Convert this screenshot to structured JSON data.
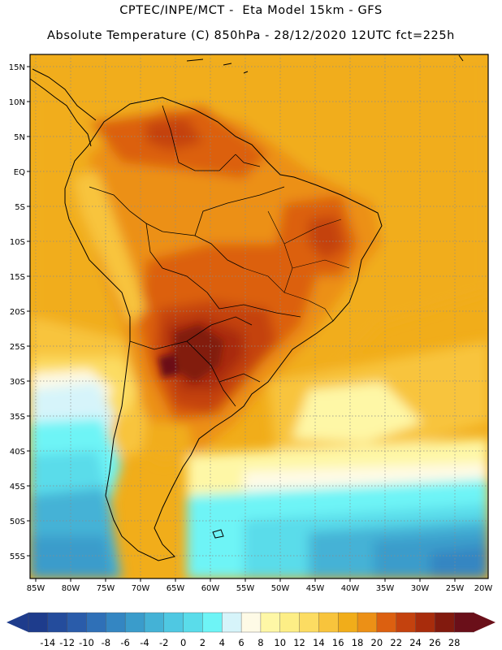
{
  "header": {
    "line1": "CPTEC/INPE/MCT -  Eta Model 15km - GFS",
    "line2": "Absolute Temperature (C) 850hPa - 28/12/2020 12UTC fct=225h"
  },
  "axes": {
    "lat_labels": [
      "15N",
      "10N",
      "5N",
      "EQ",
      "5S",
      "10S",
      "15S",
      "20S",
      "25S",
      "30S",
      "35S",
      "40S",
      "45S",
      "50S",
      "55S"
    ],
    "lat_values": [
      15,
      10,
      5,
      0,
      -5,
      -10,
      -15,
      -20,
      -25,
      -30,
      -35,
      -40,
      -45,
      -50,
      -55
    ],
    "lon_labels": [
      "85W",
      "80W",
      "75W",
      "70W",
      "65W",
      "60W",
      "55W",
      "50W",
      "45W",
      "40W",
      "35W",
      "30W",
      "25W",
      "20W"
    ],
    "lon_values": [
      -85,
      -80,
      -75,
      -70,
      -65,
      -60,
      -55,
      -50,
      -45,
      -40,
      -35,
      -30,
      -25,
      -20
    ],
    "lon_range": [
      -86,
      -20
    ],
    "lat_range": [
      -58,
      17
    ]
  },
  "colorbar": {
    "tick_labels": [
      "-14",
      "-12",
      "-10",
      "-8",
      "-6",
      "-4",
      "-2",
      "0",
      "2",
      "4",
      "6",
      "8",
      "10",
      "12",
      "14",
      "16",
      "18",
      "20",
      "22",
      "24",
      "26",
      "28"
    ],
    "colors": [
      "#1e3c8c",
      "#244c9c",
      "#2a5caa",
      "#2f70b7",
      "#3486c2",
      "#3a9ccb",
      "#44b2d6",
      "#4fc8e2",
      "#5adcea",
      "#6ef4f6",
      "#d6f4fa",
      "#fefae6",
      "#fef7a6",
      "#fdee86",
      "#fcdc62",
      "#f8c43c",
      "#f1ad1a",
      "#ec9016",
      "#dc6010",
      "#c4420e",
      "#a82c0c",
      "#821a0e",
      "#6a0f19"
    ]
  }
}
